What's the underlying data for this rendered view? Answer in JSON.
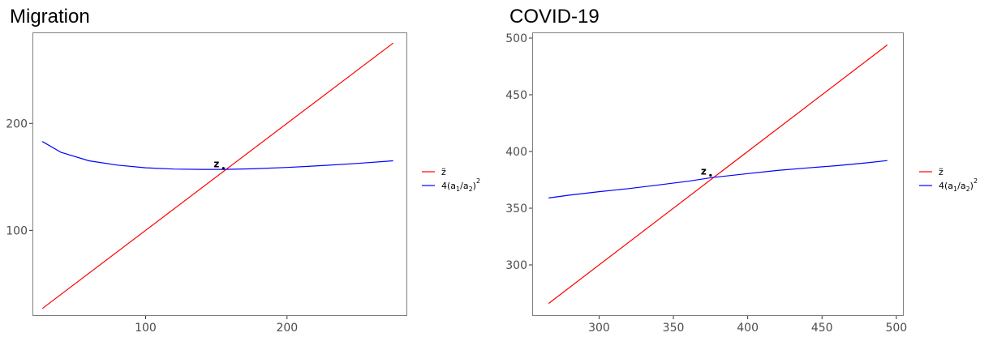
{
  "chart_data": [
    {
      "type": "line",
      "title": "Migration",
      "xlabel": "",
      "ylabel": "",
      "xlim": [
        20,
        285
      ],
      "ylim": [
        20,
        285
      ],
      "xticks": [
        100,
        200
      ],
      "yticks": [
        100,
        200
      ],
      "x_tick_labels": [
        "100",
        "200"
      ],
      "y_tick_labels": [
        "100",
        "200"
      ],
      "grid": false,
      "legend_position": "right",
      "series": [
        {
          "name": "z̃",
          "color": "#ff0000",
          "x": [
            27,
            275
          ],
          "y": [
            27,
            275
          ]
        },
        {
          "name": "4(a1/a2)²",
          "color": "#0000ff",
          "x": [
            27,
            40,
            60,
            80,
            100,
            120,
            140,
            155,
            175,
            200,
            225,
            250,
            275
          ],
          "y": [
            183,
            173,
            165,
            161,
            158.5,
            157.3,
            157,
            157,
            157.5,
            158.8,
            160.5,
            162.6,
            165
          ]
        }
      ],
      "annotation": {
        "label": "z",
        "x": 155,
        "y": 158
      }
    },
    {
      "type": "line",
      "title": "COVID-19",
      "xlabel": "",
      "ylabel": "",
      "xlim": [
        255,
        505
      ],
      "ylim": [
        255,
        505
      ],
      "xticks": [
        300,
        350,
        400,
        450,
        500
      ],
      "yticks": [
        300,
        350,
        400,
        450,
        500
      ],
      "x_tick_labels": [
        "300",
        "350",
        "400",
        "450",
        "500"
      ],
      "y_tick_labels": [
        "300",
        "350",
        "400",
        "450",
        "500"
      ],
      "grid": false,
      "legend_position": "right",
      "series": [
        {
          "name": "z̃",
          "color": "#ff0000",
          "x": [
            266,
            494
          ],
          "y": [
            266,
            494
          ]
        },
        {
          "name": "4(a1/a2)²",
          "color": "#0000ff",
          "x": [
            266,
            280,
            300,
            320,
            340,
            360,
            376,
            400,
            420,
            440,
            460,
            480,
            494
          ],
          "y": [
            359,
            361.5,
            364.6,
            367.3,
            370.5,
            373.8,
            377,
            380.5,
            383.3,
            385.5,
            387.5,
            390,
            392
          ]
        }
      ],
      "annotation": {
        "label": "z",
        "x": 375,
        "y": 379
      }
    }
  ]
}
